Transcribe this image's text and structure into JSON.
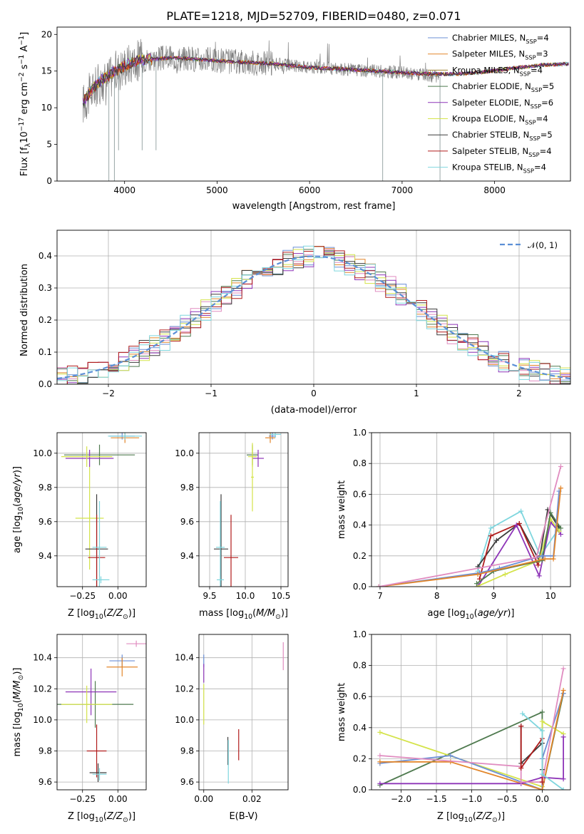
{
  "figure": {
    "title": "PLATE=1218, MJD=52709, FIBERID=0480, z=0.071"
  },
  "series_colors": [
    "#6b8fd6",
    "#e2862b",
    "#9e8030",
    "#4f7a4f",
    "#8e35b8",
    "#d4e34a",
    "#3d3d3d",
    "#b01c1c",
    "#7fd6de"
  ],
  "chart_data": [
    {
      "id": "spectrum",
      "type": "line",
      "title": "PLATE=1218, MJD=52709, FIBERID=0480, z=0.071",
      "xlabel": "wavelength [Angstrom, rest frame]",
      "ylabel": "Flux [f_λ10^-17 erg cm^-2 s^-1 A^-1]",
      "xlim": [
        3270,
        8820
      ],
      "ylim": [
        0,
        21
      ],
      "xticks": [
        4000,
        5000,
        6000,
        7000,
        8000
      ],
      "yticks": [
        0,
        5,
        10,
        15,
        20
      ],
      "legend_position": "top-right",
      "legend": [
        {
          "name": "Chabrier MILES, N",
          "sub": "SSP",
          "rest": "=4"
        },
        {
          "name": "Salpeter MILES, N",
          "sub": "SSP",
          "rest": "=3"
        },
        {
          "name": "Kroupa MILES, N",
          "sub": "SSP",
          "rest": "=4"
        },
        {
          "name": "Chabrier ELODIE, N",
          "sub": "SSP",
          "rest": "=5"
        },
        {
          "name": "Salpeter ELODIE, N",
          "sub": "SSP",
          "rest": "=6"
        },
        {
          "name": "Kroupa ELODIE, N",
          "sub": "SSP",
          "rest": "=4"
        },
        {
          "name": "Chabrier STELIB, N",
          "sub": "SSP",
          "rest": "=5"
        },
        {
          "name": "Salpeter STELIB, N",
          "sub": "SSP",
          "rest": "=4"
        },
        {
          "name": "Kroupa STELIB, N",
          "sub": "SSP",
          "rest": "=4"
        }
      ],
      "data_color": "#808080",
      "data_envelope": {
        "x": [
          3550,
          3600,
          3700,
          3800,
          3900,
          4000,
          4100,
          4200,
          4300,
          4500,
          4700,
          5000,
          5300,
          5600,
          6000,
          6300,
          6600,
          7000,
          7200,
          7400
        ],
        "y": [
          10.5,
          11.5,
          13.0,
          13.8,
          14.8,
          15.8,
          16.4,
          16.6,
          16.7,
          16.8,
          16.7,
          16.4,
          16.2,
          16.0,
          15.5,
          15.3,
          15.1,
          14.8,
          14.5,
          14.2
        ]
      },
      "model_curve": {
        "x": [
          3550,
          3650,
          3750,
          3850,
          3950,
          4050,
          4150,
          4300,
          4500,
          4700,
          5000,
          5300,
          5600,
          6000,
          6300,
          6600,
          7000,
          7300,
          7600,
          7900,
          8200,
          8500,
          8800
        ],
        "y": [
          10.8,
          12.5,
          13.8,
          14.6,
          15.4,
          16.0,
          16.5,
          16.6,
          16.8,
          16.7,
          16.4,
          16.2,
          16.0,
          15.5,
          15.3,
          15.1,
          14.8,
          14.6,
          14.6,
          14.9,
          15.4,
          15.8,
          16.0
        ]
      },
      "dips": [
        {
          "x": 3830,
          "y": 0
        },
        {
          "x": 3890,
          "y": 0
        },
        {
          "x": 3935,
          "y": 4.2
        },
        {
          "x": 4190,
          "y": 4.2
        },
        {
          "x": 4340,
          "y": 4.2
        },
        {
          "x": 6790,
          "y": 0
        },
        {
          "x": 7410,
          "y": 0
        }
      ]
    },
    {
      "id": "residuals",
      "type": "histogram",
      "xlabel": "(data-model)/error",
      "ylabel": "Normed distribution",
      "xlim": [
        -2.5,
        2.5
      ],
      "ylim": [
        0,
        0.48
      ],
      "xticks": [
        -2,
        -1,
        0,
        1,
        2
      ],
      "xtick_labels": [
        "−2",
        "−1",
        "0",
        "1",
        "2"
      ],
      "yticks": [
        0,
        0.1,
        0.2,
        0.3,
        0.4
      ],
      "ytick_labels": [
        "0.0",
        "0.1",
        "0.2",
        "0.3",
        "0.4"
      ],
      "grid": true,
      "legend_position": "top-right",
      "reference_label": "𝒩(0, 1)",
      "reference_color": "#5b8fd6",
      "bin_width": 0.1,
      "bin_start": -2.5
    },
    {
      "id": "age_vs_Z",
      "type": "errorbar",
      "xlabel": "Z [log10(Z/Z⊙)]",
      "ylabel": "age [log10(age/yr)]",
      "xlim": [
        -0.43,
        0.2
      ],
      "ylim": [
        9.22,
        10.12
      ],
      "xticks": [
        -0.25,
        0.0
      ],
      "xtick_labels": [
        "−0.25",
        "0.00"
      ],
      "yticks": [
        9.4,
        9.6,
        9.8,
        10.0
      ],
      "ytick_labels": [
        "9.4",
        "9.6",
        "9.8",
        "10.0"
      ],
      "grid": true,
      "points": [
        {
          "x": 0.03,
          "xerr": 0.09,
          "y": 10.1,
          "yerr": 0.02,
          "c": 0
        },
        {
          "x": 0.05,
          "xerr": 0.1,
          "y": 10.09,
          "yerr": 0.03,
          "c": 1
        },
        {
          "x": 0.05,
          "xerr": 0.12,
          "y": 10.1,
          "yerr": 0.02,
          "c": 8
        },
        {
          "x": -0.13,
          "xerr": 0.25,
          "y": 9.99,
          "yerr": 0.06,
          "c": 3
        },
        {
          "x": -0.2,
          "xerr": 0.17,
          "y": 9.97,
          "yerr": 0.05,
          "c": 4
        },
        {
          "x": -0.22,
          "xerr": 0.18,
          "y": 9.98,
          "yerr": 0.06,
          "c": 5
        },
        {
          "x": -0.2,
          "xerr": 0.1,
          "y": 9.62,
          "yerr": 0.3,
          "c": 5
        },
        {
          "x": -0.15,
          "xerr": 0.08,
          "y": 9.44,
          "yerr": 0.32,
          "c": 6
        },
        {
          "x": -0.15,
          "xerr": 0.06,
          "y": 9.39,
          "yerr": 0.25,
          "c": 7
        },
        {
          "x": -0.13,
          "xerr": 0.05,
          "y": 9.45,
          "yerr": 0.27,
          "c": 8
        },
        {
          "x": -0.12,
          "xerr": 0.06,
          "y": 9.26,
          "yerr": 0.02,
          "c": 8
        }
      ]
    },
    {
      "id": "age_vs_mass",
      "type": "errorbar",
      "xlabel": "mass [log10(M/M⊙)]",
      "ylabel": "",
      "xlim": [
        9.35,
        10.6
      ],
      "ylim": [
        9.22,
        10.12
      ],
      "xticks": [
        9.5,
        10.0,
        10.5
      ],
      "xtick_labels": [
        "9.5",
        "10.0",
        "10.5"
      ],
      "yticks": [
        9.4,
        9.6,
        9.8,
        10.0
      ],
      "ytick_labels": [
        "9.4",
        "9.6",
        "9.8",
        "10.0"
      ],
      "grid": true,
      "points": [
        {
          "x": 10.38,
          "xerr": 0.05,
          "y": 10.1,
          "yerr": 0.02,
          "c": 0
        },
        {
          "x": 10.35,
          "xerr": 0.07,
          "y": 10.09,
          "yerr": 0.03,
          "c": 1
        },
        {
          "x": 10.42,
          "xerr": 0.08,
          "y": 10.11,
          "yerr": 0.02,
          "c": 8
        },
        {
          "x": 10.1,
          "xerr": 0.08,
          "y": 9.99,
          "yerr": 0.06,
          "c": 3
        },
        {
          "x": 10.18,
          "xerr": 0.08,
          "y": 9.97,
          "yerr": 0.05,
          "c": 4
        },
        {
          "x": 10.1,
          "xerr": 0.06,
          "y": 9.98,
          "yerr": 0.06,
          "c": 5
        },
        {
          "x": 10.1,
          "xerr": 0.02,
          "y": 9.86,
          "yerr": 0.2,
          "c": 5
        },
        {
          "x": 9.66,
          "xerr": 0.1,
          "y": 9.44,
          "yerr": 0.32,
          "c": 6
        },
        {
          "x": 9.8,
          "xerr": 0.1,
          "y": 9.39,
          "yerr": 0.25,
          "c": 7
        },
        {
          "x": 9.65,
          "xerr": 0.06,
          "y": 9.45,
          "yerr": 0.27,
          "c": 8
        },
        {
          "x": 9.65,
          "xerr": 0.05,
          "y": 9.26,
          "yerr": 0.02,
          "c": 8
        }
      ]
    },
    {
      "id": "mass_weight_vs_age",
      "type": "line",
      "xlabel": "age [log10(age/yr)]",
      "ylabel": "mass weight",
      "xlim": [
        6.85,
        10.35
      ],
      "ylim": [
        0,
        1.0
      ],
      "xticks": [
        7,
        8,
        9,
        10
      ],
      "xtick_labels": [
        "7",
        "8",
        "9",
        "10"
      ],
      "yticks": [
        0,
        0.2,
        0.4,
        0.6,
        0.8,
        1.0
      ],
      "ytick_labels": [
        "0.0",
        "0.2",
        "0.4",
        "0.6",
        "0.8",
        "1.0"
      ],
      "grid": true,
      "series": [
        {
          "c": 8,
          "x": [
            8.72,
            8.8,
            8.95,
            9.48,
            9.82,
            10.15
          ],
          "y": [
            0.1,
            0.2,
            0.38,
            0.49,
            0.2,
            0.38
          ]
        },
        {
          "c": 6,
          "x": [
            8.72,
            9.05,
            9.45,
            9.8,
            9.95,
            10.15
          ],
          "y": [
            0.13,
            0.3,
            0.41,
            0.17,
            0.5,
            0.38
          ]
        },
        {
          "c": 7,
          "x": [
            8.75,
            8.95,
            9.45,
            9.78,
            9.82
          ],
          "y": [
            0.05,
            0.33,
            0.41,
            0.14,
            0.2
          ]
        },
        {
          "c": 4,
          "x": [
            8.72,
            9.4,
            9.8,
            10.0,
            10.18
          ],
          "y": [
            0.0,
            0.4,
            0.07,
            0.42,
            0.34
          ]
        },
        {
          "c": 5,
          "x": [
            8.7,
            9.2,
            9.8,
            10.0,
            10.15
          ],
          "y": [
            0.0,
            0.08,
            0.17,
            0.44,
            0.36
          ]
        },
        {
          "c": 3,
          "x": [
            8.7,
            9.0,
            9.85,
            10.0,
            10.18
          ],
          "y": [
            0.02,
            0.1,
            0.17,
            0.48,
            0.38
          ]
        },
        {
          "c": 0,
          "x": [
            6.98,
            8.75,
            9.1,
            9.85,
            10.05,
            10.15
          ],
          "y": [
            0.0,
            0.09,
            0.12,
            0.2,
            0.2,
            0.62
          ]
        },
        {
          "c": 1,
          "x": [
            6.98,
            8.72,
            9.9,
            10.05,
            10.18
          ],
          "y": [
            0.0,
            0.08,
            0.18,
            0.18,
            0.64
          ]
        },
        {
          "c": 9,
          "x": [
            6.98,
            9.75,
            10.18
          ],
          "y": [
            0.0,
            0.19,
            0.78
          ]
        }
      ]
    },
    {
      "id": "mass_vs_Z",
      "type": "errorbar",
      "xlabel": "Z [log10(Z/Z⊙)]",
      "ylabel": "mass [log10(M/M⊙)]",
      "xlim": [
        -0.43,
        0.2
      ],
      "ylim": [
        9.55,
        10.55
      ],
      "xticks": [
        -0.25,
        0.0
      ],
      "xtick_labels": [
        "−0.25",
        "0.00"
      ],
      "yticks": [
        9.6,
        9.8,
        10.0,
        10.2,
        10.4
      ],
      "ytick_labels": [
        "9.6",
        "9.8",
        "10.0",
        "10.2",
        "10.4"
      ],
      "grid": true,
      "points": [
        {
          "x": 0.03,
          "xerr": 0.09,
          "y": 10.38,
          "yerr": 0.04,
          "c": 0
        },
        {
          "x": 0.03,
          "xerr": 0.11,
          "y": 10.34,
          "yerr": 0.06,
          "c": 1
        },
        {
          "x": 0.13,
          "xerr": 0.07,
          "y": 10.49,
          "yerr": 0.02,
          "c": 9
        },
        {
          "x": -0.16,
          "xerr": 0.27,
          "y": 10.1,
          "yerr": 0.15,
          "c": 3
        },
        {
          "x": -0.19,
          "xerr": 0.18,
          "y": 10.18,
          "yerr": 0.15,
          "c": 4
        },
        {
          "x": -0.22,
          "xerr": 0.18,
          "y": 10.1,
          "yerr": 0.12,
          "c": 5
        },
        {
          "x": -0.15,
          "xerr": 0.07,
          "y": 9.8,
          "yerr": 0.17,
          "c": 7
        },
        {
          "x": -0.14,
          "xerr": 0.06,
          "y": 9.66,
          "yerr": 0.06,
          "c": 6
        },
        {
          "x": -0.13,
          "xerr": 0.05,
          "y": 9.65,
          "yerr": 0.04,
          "c": 8
        }
      ]
    },
    {
      "id": "mass_vs_ebv",
      "type": "errorbar",
      "xlabel": "E(B-V)",
      "ylabel": "",
      "xlim": [
        -0.002,
        0.035
      ],
      "ylim": [
        9.55,
        10.55
      ],
      "xticks": [
        0.0,
        0.02
      ],
      "xtick_labels": [
        "0.00",
        "0.02"
      ],
      "yticks": [
        9.6,
        9.8,
        10.0,
        10.2,
        10.4
      ],
      "ytick_labels": [
        "9.6",
        "9.8",
        "10.0",
        "10.2",
        "10.4"
      ],
      "grid": true,
      "points": [
        {
          "x": 0.0,
          "xerr": 0,
          "y": 10.38,
          "yerr": 0.04,
          "c": 0
        },
        {
          "x": 0.0,
          "xerr": 0,
          "y": 10.3,
          "yerr": 0.06,
          "c": 4
        },
        {
          "x": 0.0,
          "xerr": 0,
          "y": 10.1,
          "yerr": 0.13,
          "c": 5
        },
        {
          "x": 0.033,
          "xerr": 0,
          "y": 10.41,
          "yerr": 0.09,
          "c": 9
        },
        {
          "x": 0.01,
          "xerr": 0,
          "y": 9.8,
          "yerr": 0.09,
          "c": 6
        },
        {
          "x": 0.0145,
          "xerr": 0,
          "y": 9.84,
          "yerr": 0.1,
          "c": 7
        },
        {
          "x": 0.0102,
          "xerr": 0,
          "y": 9.73,
          "yerr": 0.14,
          "c": 8
        }
      ]
    },
    {
      "id": "mass_weight_vs_Z",
      "type": "line",
      "xlabel": "Z [log10(Z/Z⊙)]",
      "ylabel": "mass weight",
      "xlim": [
        -2.42,
        0.4
      ],
      "ylim": [
        0,
        1.0
      ],
      "xticks": [
        -2.0,
        -1.5,
        -1.0,
        -0.5,
        0.0
      ],
      "xtick_labels": [
        "−2.0",
        "−1.5",
        "−1.0",
        "−0.5",
        "0.0"
      ],
      "yticks": [
        0,
        0.2,
        0.4,
        0.6,
        0.8,
        1.0
      ],
      "ytick_labels": [
        "0.0",
        "0.2",
        "0.4",
        "0.6",
        "0.8",
        "1.0"
      ],
      "grid": true,
      "series": [
        {
          "c": 3,
          "x": [
            -2.3,
            0.0,
            0.0,
            0.3
          ],
          "y": [
            0.03,
            0.5,
            0.0,
            0.62
          ]
        },
        {
          "c": 5,
          "x": [
            -2.3,
            0.0,
            0.0,
            0.3
          ],
          "y": [
            0.37,
            0.02,
            0.44,
            0.36
          ]
        },
        {
          "c": 0,
          "x": [
            -2.3,
            -1.3,
            0.0,
            0.0,
            0.3
          ],
          "y": [
            0.17,
            0.22,
            0.0,
            0.2,
            0.62
          ]
        },
        {
          "c": 1,
          "x": [
            -2.3,
            -1.3,
            0.0,
            0.3
          ],
          "y": [
            0.18,
            0.18,
            0.0,
            0.64
          ]
        },
        {
          "c": 4,
          "x": [
            -2.3,
            -0.3,
            0.0,
            0.3,
            0.3
          ],
          "y": [
            0.04,
            0.04,
            0.08,
            0.07,
            0.34
          ]
        },
        {
          "c": 9,
          "x": [
            -2.3,
            -0.3,
            -0.3,
            0.0,
            0.3
          ],
          "y": [
            0.22,
            0.15,
            0.05,
            0.05,
            0.78
          ]
        },
        {
          "c": 6,
          "x": [
            -0.3,
            -0.3,
            0.0,
            0.0
          ],
          "y": [
            0.41,
            0.17,
            0.3,
            0.13
          ]
        },
        {
          "c": 7,
          "x": [
            -0.3,
            -0.3,
            0.0,
            0.0
          ],
          "y": [
            0.41,
            0.14,
            0.33,
            0.05
          ]
        },
        {
          "c": 8,
          "x": [
            -0.28,
            0.0,
            0.0,
            0.3
          ],
          "y": [
            0.49,
            0.38,
            0.1,
            0.0
          ]
        }
      ]
    }
  ]
}
